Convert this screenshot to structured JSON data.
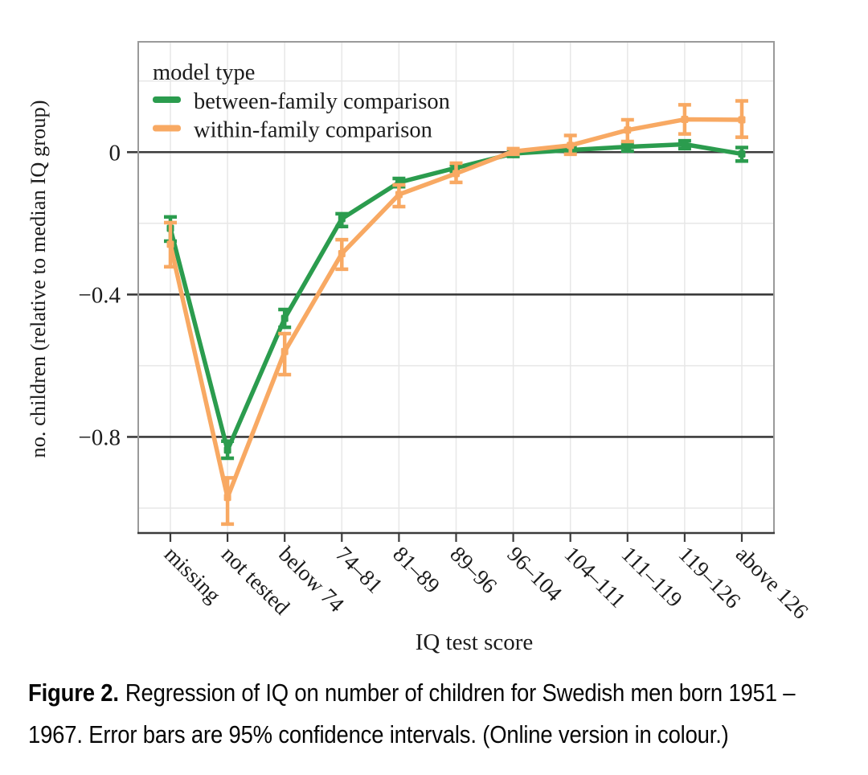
{
  "caption": {
    "label": "Figure 2.",
    "line1": "Regression of IQ on number of children for Swedish men born 1951 –",
    "line2": "1967. Error bars are 95% confidence intervals. (Online version in colour.)"
  },
  "colors": {
    "green": "#2b9c4e",
    "orange": "#f8a963",
    "grid_major": "#3b3b3b",
    "grid_minor": "#e7e7e7",
    "border": "#9a9a9a",
    "text": "#1c1c1c"
  },
  "chart_data": {
    "type": "line",
    "title": "",
    "xlabel": "IQ test score",
    "ylabel": "no. children (relative to median IQ group)",
    "legend_title": "model type",
    "legend_position": "top-left-inside",
    "grid": {
      "major": [
        0,
        -0.4,
        -0.8
      ],
      "minor": [
        0.2,
        -0.2,
        -0.6,
        -1.0
      ]
    },
    "ylim": [
      -1.07,
      0.31
    ],
    "ytick_values": [
      0,
      -0.4,
      -0.8
    ],
    "ytick_labels": [
      "0",
      "−0.4",
      "−0.8"
    ],
    "categories": [
      "missing",
      "not tested",
      "below 74",
      "74–81",
      "81–89",
      "89–96",
      "96–104",
      "104–111",
      "111–119",
      "119–126",
      "above 126"
    ],
    "series": [
      {
        "name": "between-family comparison",
        "color": "#2b9c4e",
        "values": [
          -0.214,
          -0.837,
          -0.467,
          -0.187,
          -0.085,
          -0.044,
          -0.004,
          0.006,
          0.015,
          0.022,
          -0.005
        ],
        "ci_low": [
          -0.25,
          -0.86,
          -0.492,
          -0.209,
          -0.097,
          -0.054,
          -0.012,
          -0.001,
          0.003,
          0.01,
          -0.025
        ],
        "ci_high": [
          -0.182,
          -0.812,
          -0.442,
          -0.173,
          -0.074,
          -0.036,
          0.004,
          0.014,
          0.024,
          0.032,
          0.013
        ]
      },
      {
        "name": "within-family comparison",
        "color": "#f8a963",
        "values": [
          -0.259,
          -0.97,
          -0.56,
          -0.285,
          -0.119,
          -0.06,
          0.002,
          0.019,
          0.062,
          0.092,
          0.091
        ],
        "ci_low": [
          -0.322,
          -1.045,
          -0.625,
          -0.329,
          -0.153,
          -0.085,
          -0.006,
          -0.006,
          0.03,
          0.051,
          0.042
        ],
        "ci_high": [
          -0.198,
          -0.915,
          -0.51,
          -0.246,
          -0.092,
          -0.031,
          0.01,
          0.047,
          0.091,
          0.133,
          0.144
        ]
      }
    ]
  }
}
